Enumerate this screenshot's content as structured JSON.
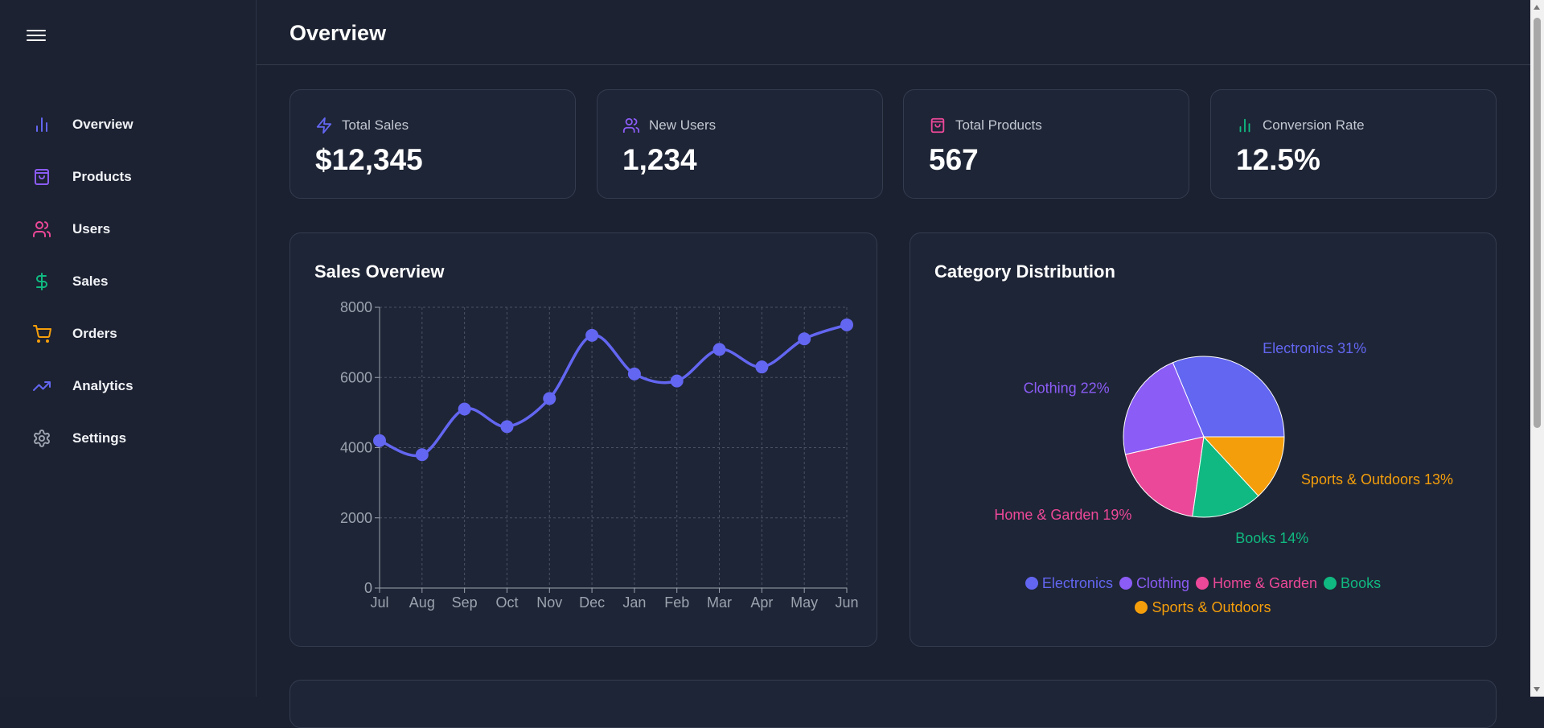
{
  "header": {
    "title": "Overview"
  },
  "sidebar": {
    "items": [
      {
        "label": "Overview",
        "icon": "bar-chart-icon",
        "color": "#6366f1"
      },
      {
        "label": "Products",
        "icon": "shopping-bag-icon",
        "color": "#8b5cf6"
      },
      {
        "label": "Users",
        "icon": "users-icon",
        "color": "#ec4899"
      },
      {
        "label": "Sales",
        "icon": "dollar-sign-icon",
        "color": "#10b981"
      },
      {
        "label": "Orders",
        "icon": "shopping-cart-icon",
        "color": "#f59e0b"
      },
      {
        "label": "Analytics",
        "icon": "trending-up-icon",
        "color": "#6366f1"
      },
      {
        "label": "Settings",
        "icon": "settings-icon",
        "color": "#9ca3af"
      }
    ]
  },
  "stats": [
    {
      "label": "Total Sales",
      "value": "$12,345",
      "icon": "zap-icon",
      "color": "#6366f1"
    },
    {
      "label": "New Users",
      "value": "1,234",
      "icon": "users-icon",
      "color": "#8b5cf6"
    },
    {
      "label": "Total Products",
      "value": "567",
      "icon": "shopping-bag-icon",
      "color": "#ec4899"
    },
    {
      "label": "Conversion Rate",
      "value": "12.5%",
      "icon": "bar-chart-icon",
      "color": "#10b981"
    }
  ],
  "chart_data": [
    {
      "type": "line",
      "title": "Sales Overview",
      "categories": [
        "Jul",
        "Aug",
        "Sep",
        "Oct",
        "Nov",
        "Dec",
        "Jan",
        "Feb",
        "Mar",
        "Apr",
        "May",
        "Jun"
      ],
      "values": [
        4200,
        3800,
        5100,
        4600,
        5400,
        7200,
        6100,
        5900,
        6800,
        6300,
        7100,
        7500
      ],
      "ylim": [
        0,
        8000
      ],
      "yticks": [
        "0",
        "2000",
        "4000",
        "6000",
        "8000"
      ],
      "grid": true,
      "color": "#6366f1"
    },
    {
      "type": "pie",
      "title": "Category Distribution",
      "slices": [
        {
          "name": "Electronics",
          "value": 31,
          "label": "Electronics 31%",
          "color": "#6366f1"
        },
        {
          "name": "Clothing",
          "value": 22,
          "label": "Clothing 22%",
          "color": "#8b5cf6"
        },
        {
          "name": "Home & Garden",
          "value": 19,
          "label": "Home & Garden 19%",
          "color": "#ec4899"
        },
        {
          "name": "Books",
          "value": 14,
          "label": "Books 14%",
          "color": "#10b981"
        },
        {
          "name": "Sports & Outdoors",
          "value": 13,
          "label": "Sports & Outdoors 13%",
          "color": "#f59e0b"
        }
      ],
      "legend": "bottom"
    }
  ]
}
